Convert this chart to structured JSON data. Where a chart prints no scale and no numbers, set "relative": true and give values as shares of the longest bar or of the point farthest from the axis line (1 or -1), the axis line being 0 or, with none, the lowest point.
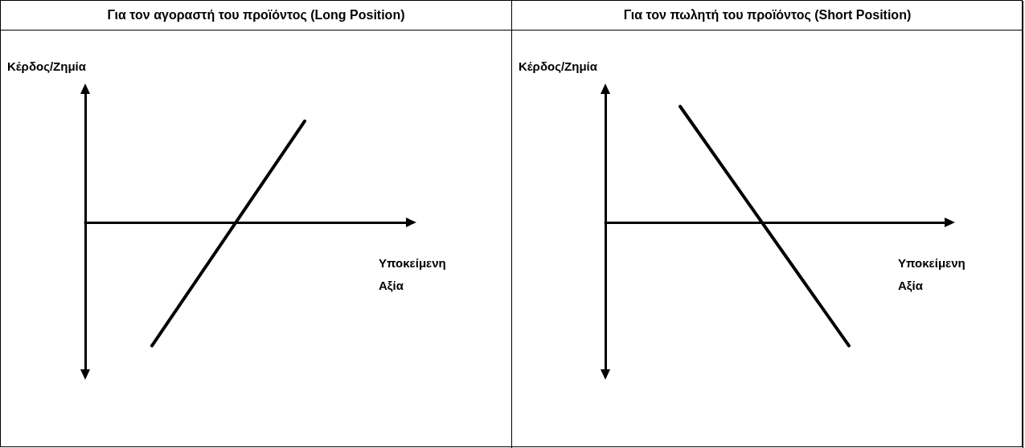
{
  "chart_data": [
    {
      "type": "line",
      "title": "Για τον αγοραστή του προϊόντος (Long Position)",
      "xlabel": "Υποκείμενη Αξία",
      "ylabel": "Κέρδος/Ζημία",
      "relative": true,
      "categories": [
        null,
        null
      ],
      "marker": "none",
      "line_style": "solid",
      "series": [
        {
          "color": "#000000",
          "values": [
            -1,
            0.82
          ]
        }
      ]
    },
    {
      "type": "line",
      "title": "Για τον πωλητή του προϊόντος (Short Position)",
      "xlabel": "Υποκείμενη Αξία",
      "ylabel": "Κέρδος/Ζημία",
      "relative": true,
      "categories": [
        null,
        null
      ],
      "marker": "none",
      "line_style": "solid",
      "series": [
        {
          "color": "#000000",
          "values": [
            0.94,
            -1
          ]
        }
      ]
    }
  ]
}
